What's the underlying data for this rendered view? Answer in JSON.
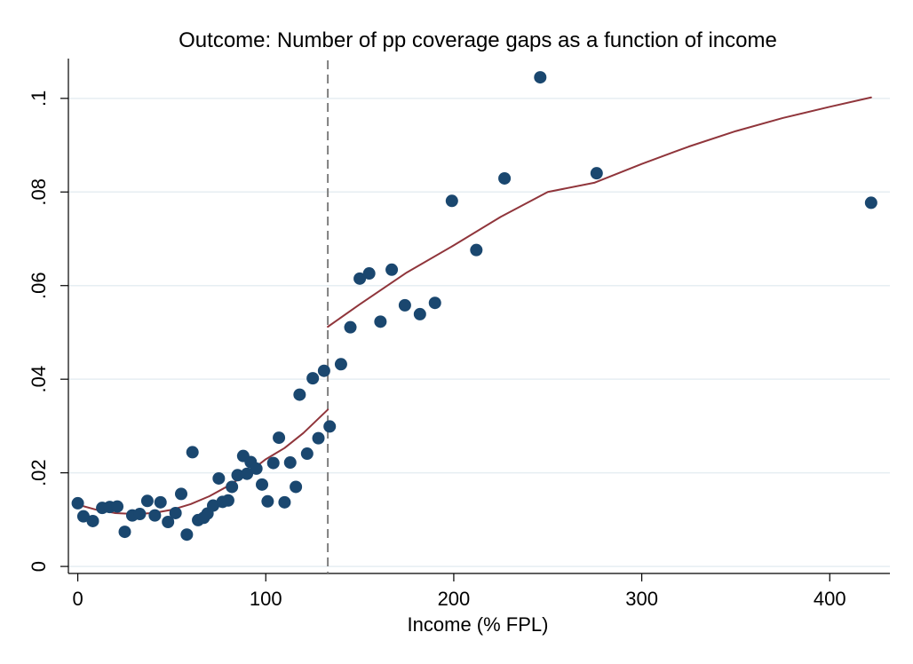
{
  "chart_data": {
    "type": "scatter",
    "title": "Outcome: Number of pp coverage gaps as a function of income",
    "xlabel": "Income (% FPL)",
    "ylabel": "",
    "xlim": [
      -5,
      432
    ],
    "ylim": [
      -0.0015,
      0.1085
    ],
    "x_ticks": [
      0,
      100,
      200,
      300,
      400
    ],
    "x_tick_labels": [
      "0",
      "100",
      "200",
      "300",
      "400"
    ],
    "y_ticks": [
      0,
      0.02,
      0.04,
      0.06,
      0.08,
      0.1
    ],
    "y_tick_labels": [
      "0",
      ".02",
      ".04",
      ".06",
      ".08",
      ".1"
    ],
    "grid": true,
    "legend": "none",
    "vertical_reference_line": {
      "x": 133,
      "style": "dashed",
      "color": "#7f7f7f"
    },
    "series": [
      {
        "type": "scatter",
        "color": "#1a476f",
        "points": [
          [
            0,
            0.0135
          ],
          [
            3,
            0.0107
          ],
          [
            8,
            0.0097
          ],
          [
            13,
            0.0125
          ],
          [
            17,
            0.0127
          ],
          [
            21,
            0.0128
          ],
          [
            25,
            0.0074
          ],
          [
            29,
            0.0109
          ],
          [
            33,
            0.0112
          ],
          [
            37,
            0.014
          ],
          [
            41,
            0.0109
          ],
          [
            44,
            0.0137
          ],
          [
            48,
            0.0095
          ],
          [
            52,
            0.0114
          ],
          [
            55,
            0.0155
          ],
          [
            58,
            0.0068
          ],
          [
            61,
            0.0244
          ],
          [
            64,
            0.0099
          ],
          [
            67,
            0.0104
          ],
          [
            69,
            0.0113
          ],
          [
            72,
            0.013
          ],
          [
            75,
            0.0188
          ],
          [
            77,
            0.0138
          ],
          [
            80,
            0.0141
          ],
          [
            82,
            0.017
          ],
          [
            85,
            0.0195
          ],
          [
            88,
            0.0236
          ],
          [
            90,
            0.0198
          ],
          [
            92,
            0.0223
          ],
          [
            95,
            0.0209
          ],
          [
            98,
            0.0175
          ],
          [
            101,
            0.0139
          ],
          [
            104,
            0.0221
          ],
          [
            107,
            0.0275
          ],
          [
            110,
            0.0137
          ],
          [
            113,
            0.0222
          ],
          [
            116,
            0.017
          ],
          [
            118,
            0.0367
          ],
          [
            122,
            0.0241
          ],
          [
            125,
            0.0402
          ],
          [
            128,
            0.0274
          ],
          [
            131,
            0.0418
          ],
          [
            134,
            0.0299
          ],
          [
            140,
            0.0432
          ],
          [
            145,
            0.0511
          ],
          [
            150,
            0.0615
          ],
          [
            155,
            0.0626
          ],
          [
            161,
            0.0523
          ],
          [
            167,
            0.0634
          ],
          [
            174,
            0.0558
          ],
          [
            182,
            0.0539
          ],
          [
            190,
            0.0563
          ],
          [
            199,
            0.0781
          ],
          [
            212,
            0.0676
          ],
          [
            227,
            0.0829
          ],
          [
            246,
            0.1045
          ],
          [
            276,
            0.084
          ],
          [
            422,
            0.0777
          ]
        ]
      },
      {
        "type": "line",
        "segment": "below-threshold",
        "color": "#90353b",
        "points": [
          [
            0,
            0.0132
          ],
          [
            10,
            0.0121
          ],
          [
            20,
            0.0114
          ],
          [
            30,
            0.0112
          ],
          [
            40,
            0.0114
          ],
          [
            50,
            0.0121
          ],
          [
            60,
            0.0133
          ],
          [
            70,
            0.015
          ],
          [
            80,
            0.0172
          ],
          [
            90,
            0.0198
          ],
          [
            100,
            0.0229
          ],
          [
            110,
            0.0253
          ],
          [
            120,
            0.0285
          ],
          [
            133,
            0.0335
          ]
        ]
      },
      {
        "type": "line",
        "segment": "above-threshold",
        "color": "#90353b",
        "points": [
          [
            133,
            0.0512
          ],
          [
            150,
            0.056
          ],
          [
            175,
            0.0628
          ],
          [
            200,
            0.0686
          ],
          [
            225,
            0.0747
          ],
          [
            250,
            0.08
          ],
          [
            275,
            0.082
          ],
          [
            300,
            0.086
          ],
          [
            325,
            0.0897
          ],
          [
            350,
            0.093
          ],
          [
            375,
            0.0958
          ],
          [
            400,
            0.0982
          ],
          [
            422,
            0.1002
          ]
        ]
      }
    ]
  }
}
